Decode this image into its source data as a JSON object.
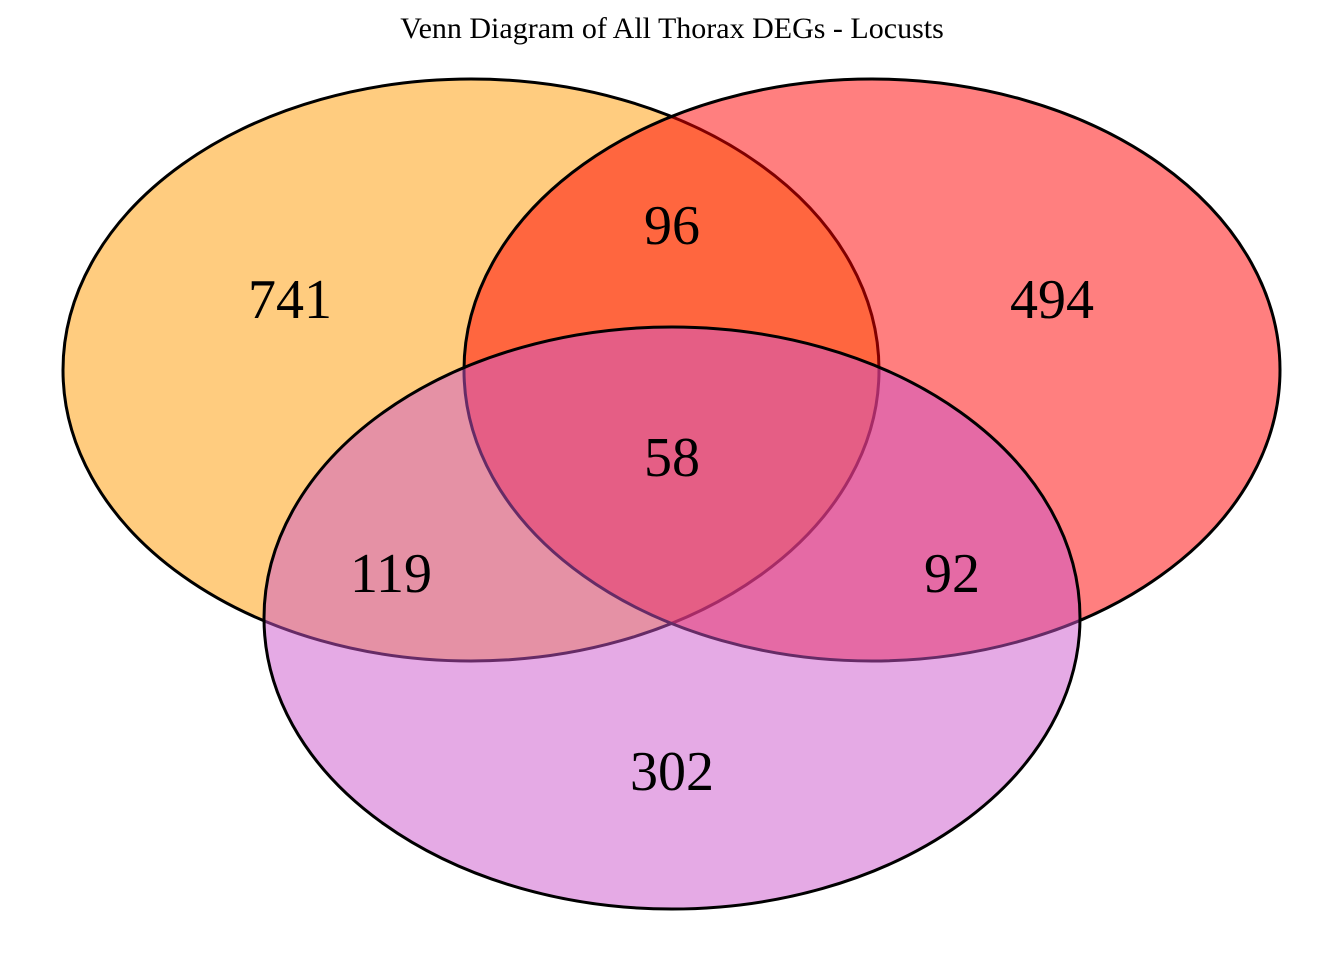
{
  "title": "Venn Diagram of All Thorax DEGs - Locusts",
  "chart_data": {
    "type": "venn",
    "title": "Venn Diagram of All Thorax DEGs - Locusts",
    "sets": [
      {
        "id": "A",
        "color": "#FF9900",
        "opacity": 0.5
      },
      {
        "id": "B",
        "color": "#FF0000",
        "opacity": 0.5
      },
      {
        "id": "C",
        "color": "#CC55CC",
        "opacity": 0.5
      }
    ],
    "regions": {
      "A_only": "741",
      "B_only": "494",
      "C_only": "302",
      "A_B": "96",
      "A_C": "119",
      "B_C": "92",
      "A_B_C": "58"
    }
  }
}
